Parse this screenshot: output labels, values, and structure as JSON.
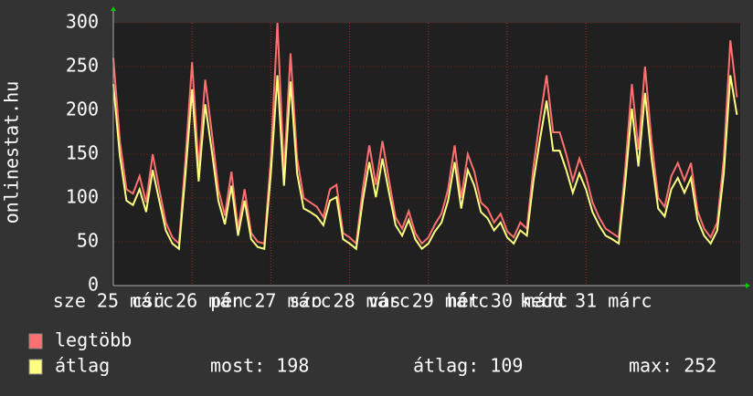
{
  "chart_data": {
    "type": "line",
    "y_label": "onlinestat.hu",
    "x": [
      0,
      2,
      4,
      6,
      8,
      10,
      12,
      14,
      16,
      18,
      20,
      22,
      24,
      26,
      28,
      30,
      32,
      34,
      36,
      38,
      40,
      42,
      44,
      46,
      48,
      50,
      52,
      54,
      56,
      58,
      60,
      62,
      64,
      66,
      68,
      70,
      72,
      74,
      76,
      78,
      80,
      82,
      84,
      86,
      88,
      90,
      92,
      94,
      96,
      98,
      100,
      102,
      104,
      106,
      108,
      110,
      112,
      114,
      116,
      118,
      120,
      122,
      124,
      126,
      128,
      130,
      132,
      134,
      136,
      138,
      140,
      142,
      144,
      146,
      148,
      150,
      152,
      154,
      156,
      158,
      160,
      162,
      164,
      166,
      168,
      170,
      172,
      174,
      176,
      178,
      180,
      182,
      184,
      186,
      188,
      190
    ],
    "xlim": [
      0,
      191
    ],
    "xticks": [
      {
        "value": 0,
        "label": "sze 25 márc"
      },
      {
        "value": 24,
        "label": "csü 26 márc"
      },
      {
        "value": 48,
        "label": "pén 27 márc"
      },
      {
        "value": 72,
        "label": "szo 28 márc"
      },
      {
        "value": 96,
        "label": "vas 29 márc"
      },
      {
        "value": 120,
        "label": "hét 30 márc"
      },
      {
        "value": 144,
        "label": "kedd 31 márc"
      }
    ],
    "ylim": [
      0,
      300
    ],
    "yticks": [
      0,
      50,
      100,
      150,
      200,
      250,
      300
    ],
    "grid": true,
    "series": [
      {
        "name": "legtöbb",
        "color": "#ff7070",
        "values": [
          260,
          165,
          110,
          105,
          125,
          95,
          150,
          110,
          72,
          55,
          48,
          145,
          255,
          135,
          235,
          175,
          110,
          80,
          130,
          65,
          110,
          60,
          50,
          48,
          145,
          300,
          130,
          265,
          145,
          100,
          95,
          90,
          78,
          110,
          115,
          60,
          55,
          48,
          110,
          160,
          115,
          165,
          120,
          78,
          65,
          85,
          60,
          48,
          55,
          70,
          82,
          110,
          160,
          100,
          150,
          130,
          95,
          88,
          72,
          82,
          62,
          55,
          72,
          65,
          135,
          190,
          240,
          175,
          175,
          150,
          120,
          145,
          125,
          95,
          78,
          65,
          60,
          55,
          135,
          230,
          155,
          250,
          165,
          100,
          90,
          125,
          140,
          120,
          140,
          85,
          65,
          55,
          72,
          145,
          280,
          215
        ]
      },
      {
        "name": "átlag",
        "color": "#ffff80",
        "values": [
          230,
          148,
          97,
          92,
          110,
          84,
          132,
          97,
          63,
          48,
          42,
          128,
          224,
          119,
          207,
          154,
          97,
          70,
          114,
          57,
          97,
          53,
          44,
          42,
          128,
          240,
          114,
          233,
          128,
          88,
          84,
          79,
          69,
          97,
          101,
          53,
          48,
          42,
          97,
          141,
          101,
          145,
          106,
          69,
          57,
          75,
          53,
          42,
          48,
          62,
          72,
          97,
          141,
          88,
          132,
          114,
          84,
          77,
          63,
          72,
          55,
          48,
          63,
          57,
          119,
          167,
          211,
          154,
          154,
          132,
          106,
          128,
          110,
          84,
          69,
          57,
          53,
          48,
          119,
          202,
          136,
          220,
          145,
          88,
          79,
          110,
          123,
          106,
          123,
          75,
          57,
          48,
          63,
          128,
          240,
          195
        ]
      }
    ],
    "stats": [
      "most: 198",
      "átlag: 109",
      "max: 252"
    ]
  }
}
